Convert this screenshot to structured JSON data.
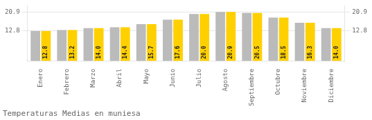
{
  "chart_data": {
    "type": "bar",
    "title": "Temperaturas Medias en muniesa",
    "categories": [
      "Enero",
      "Febrero",
      "Marzo",
      "Abril",
      "Mayo",
      "Junio",
      "Julio",
      "Agosto",
      "Septiembre",
      "Octubre",
      "Noviembre",
      "Diciembre"
    ],
    "series": [
      {
        "color": "#BBBBBB",
        "values": [
          12.8,
          13.2,
          14.0,
          14.4,
          15.7,
          17.6,
          20.0,
          20.9,
          20.5,
          18.5,
          16.3,
          14.0
        ]
      },
      {
        "color": "#FFD000",
        "values": [
          12.8,
          13.2,
          14.0,
          14.4,
          15.7,
          17.6,
          20.0,
          20.9,
          20.5,
          18.5,
          16.3,
          14.0
        ],
        "data_labels": true,
        "value_labels": [
          "12.8",
          "13.2",
          "14.0",
          "14.4",
          "15.7",
          "17.6",
          "20.0",
          "20.9",
          "20.5",
          "18.5",
          "16.3",
          "14.0"
        ]
      }
    ],
    "ylim": [
      0,
      23.5
    ],
    "yticks": [
      12.8,
      20.9
    ],
    "y2lim": [
      0,
      23.5
    ],
    "y2ticks": [
      12.8,
      20.9
    ],
    "grid": true
  }
}
